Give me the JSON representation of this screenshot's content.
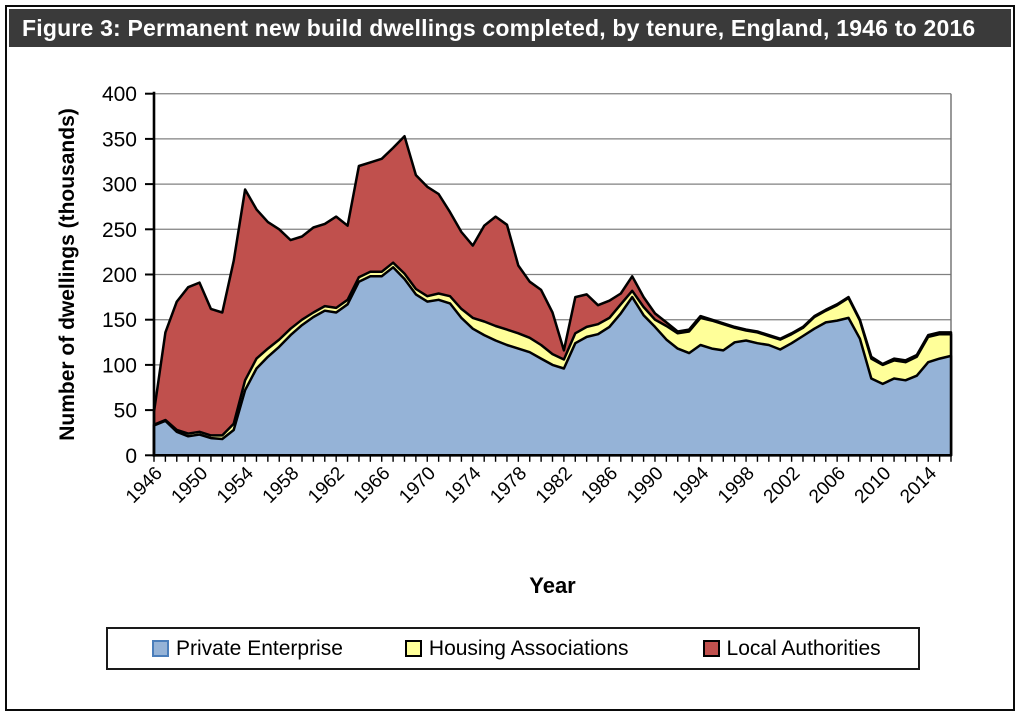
{
  "figure": {
    "title": "Figure 3: Permanent new build dwellings completed, by tenure, England, 1946 to 2016",
    "title_bg": "#3a3a3a",
    "title_color": "#ffffff"
  },
  "chart_data": {
    "type": "area",
    "stacked": true,
    "title": "Figure 3: Permanent new build dwellings completed, by tenure, England, 1946 to 2016",
    "xlabel": "Year",
    "ylabel": "Number of dwellings (thousands)",
    "ylim": [
      0,
      400
    ],
    "ytick_step": 50,
    "yticks": [
      0,
      50,
      100,
      150,
      200,
      250,
      300,
      350,
      400
    ],
    "x_start": 1946,
    "x_end": 2016,
    "xtick_labels": [
      "1946",
      "1950",
      "1954",
      "1958",
      "1962",
      "1966",
      "1970",
      "1974",
      "1978",
      "1982",
      "1986",
      "1990",
      "1994",
      "1998",
      "2002",
      "2006",
      "2010",
      "2014"
    ],
    "xtick_label_step": 4,
    "grid": "horizontal",
    "grid_color": "#808080",
    "axis_color": "#000000",
    "legend_position": "bottom",
    "series": [
      {
        "name": "Private Enterprise",
        "color": "#95B3D7",
        "swatch_border": "#4A7EBB",
        "stroke": "#000000",
        "values": [
          33,
          38,
          26,
          21,
          23,
          19,
          18,
          28,
          72,
          96,
          109,
          120,
          133,
          144,
          153,
          160,
          158,
          167,
          192,
          198,
          198,
          208,
          195,
          178,
          170,
          172,
          168,
          152,
          140,
          133,
          127,
          122,
          118,
          114,
          107,
          100,
          96,
          124,
          131,
          134,
          142,
          157,
          175,
          155,
          142,
          128,
          118,
          113,
          122,
          118,
          116,
          125,
          127,
          124,
          122,
          117,
          124,
          132,
          140,
          147,
          149,
          152,
          129,
          85,
          79,
          85,
          83,
          88,
          103,
          107,
          110
        ]
      },
      {
        "name": "Housing Associations",
        "color": "#FFFF99",
        "swatch_border": "#000000",
        "stroke": "#000000",
        "values": [
          1,
          1,
          2,
          3,
          3,
          3,
          4,
          7,
          11,
          11,
          9,
          8,
          7,
          6,
          5,
          5,
          5,
          5,
          5,
          5,
          5,
          5,
          6,
          6,
          6,
          7,
          8,
          10,
          12,
          15,
          16,
          17,
          17,
          16,
          15,
          12,
          10,
          11,
          11,
          11,
          10,
          10,
          7,
          9,
          8,
          15,
          17,
          24,
          30,
          31,
          29,
          16,
          11,
          12,
          10,
          11,
          10,
          9,
          13,
          13,
          17,
          22,
          20,
          22,
          21,
          20,
          20,
          21,
          28,
          27,
          24
        ]
      },
      {
        "name": "Local Authorities",
        "color": "#C0504D",
        "swatch_border": "#000000",
        "stroke": "#000000",
        "values": [
          14,
          97,
          142,
          162,
          165,
          140,
          136,
          180,
          211,
          165,
          140,
          122,
          98,
          92,
          94,
          91,
          101,
          82,
          123,
          121,
          125,
          127,
          152,
          126,
          121,
          110,
          93,
          85,
          80,
          106,
          121,
          116,
          75,
          62,
          61,
          46,
          10,
          40,
          36,
          21,
          19,
          12,
          16,
          11,
          7,
          4,
          2,
          2,
          2,
          1,
          1,
          1,
          1,
          1,
          1,
          1,
          1,
          1,
          1,
          1,
          1,
          1,
          1,
          2,
          1,
          2,
          2,
          2,
          2,
          2,
          2
        ]
      }
    ]
  }
}
